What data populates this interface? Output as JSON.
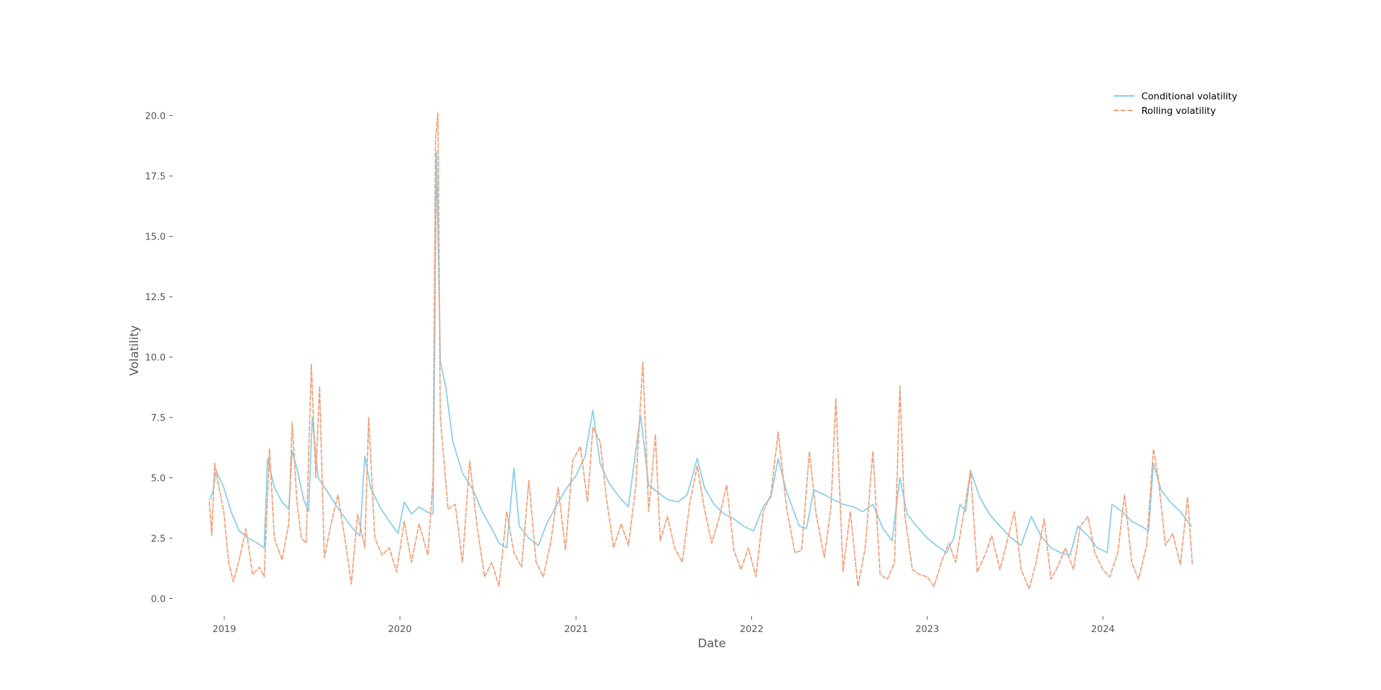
{
  "chart_data": {
    "type": "line",
    "title": "",
    "xlabel": "Date",
    "ylabel": "Volatility",
    "x_ticks": [
      "2019",
      "2020",
      "2021",
      "2022",
      "2023",
      "2024"
    ],
    "y_ticks": [
      "0.0",
      "2.5",
      "5.0",
      "7.5",
      "10.0",
      "12.5",
      "15.0",
      "17.5",
      "20.0"
    ],
    "xlim": [
      "2018-09-30",
      "2024-10-18"
    ],
    "ylim": [
      -0.5,
      20.5
    ],
    "grid": false,
    "legend_position": "top-right",
    "series": [
      {
        "name": "Conditional volatility",
        "color": "#87ceeb",
        "style": "solid",
        "points": [
          [
            "2018-12-01",
            4.1
          ],
          [
            "2018-12-08",
            4.4
          ],
          [
            "2018-12-15",
            5.3
          ],
          [
            "2018-12-22",
            5.0
          ],
          [
            "2018-12-31",
            4.6
          ],
          [
            "2019-01-15",
            3.6
          ],
          [
            "2019-02-01",
            2.8
          ],
          [
            "2019-02-20",
            2.5
          ],
          [
            "2019-03-10",
            2.3
          ],
          [
            "2019-03-25",
            2.1
          ],
          [
            "2019-04-01",
            5.8
          ],
          [
            "2019-04-15",
            4.6
          ],
          [
            "2019-05-01",
            4.0
          ],
          [
            "2019-05-15",
            3.7
          ],
          [
            "2019-05-22",
            6.1
          ],
          [
            "2019-06-01",
            5.4
          ],
          [
            "2019-06-15",
            4.1
          ],
          [
            "2019-06-25",
            3.6
          ],
          [
            "2019-07-03",
            7.5
          ],
          [
            "2019-07-15",
            5.0
          ],
          [
            "2019-08-01",
            4.5
          ],
          [
            "2019-08-20",
            3.9
          ],
          [
            "2019-09-10",
            3.3
          ],
          [
            "2019-09-25",
            2.9
          ],
          [
            "2019-10-10",
            2.6
          ],
          [
            "2019-10-20",
            5.9
          ],
          [
            "2019-11-01",
            4.6
          ],
          [
            "2019-11-20",
            3.8
          ],
          [
            "2019-12-10",
            3.2
          ],
          [
            "2019-12-28",
            2.7
          ],
          [
            "2020-01-10",
            4.0
          ],
          [
            "2020-01-25",
            3.5
          ],
          [
            "2020-02-10",
            3.8
          ],
          [
            "2020-02-25",
            3.6
          ],
          [
            "2020-03-10",
            3.5
          ],
          [
            "2020-03-17",
            18.5
          ],
          [
            "2020-03-25",
            9.8
          ],
          [
            "2020-04-05",
            8.8
          ],
          [
            "2020-04-20",
            6.5
          ],
          [
            "2020-05-10",
            5.2
          ],
          [
            "2020-06-01",
            4.5
          ],
          [
            "2020-06-20",
            3.6
          ],
          [
            "2020-07-10",
            2.9
          ],
          [
            "2020-07-25",
            2.3
          ],
          [
            "2020-08-10",
            2.1
          ],
          [
            "2020-08-25",
            5.4
          ],
          [
            "2020-09-05",
            3.0
          ],
          [
            "2020-09-25",
            2.5
          ],
          [
            "2020-10-15",
            2.2
          ],
          [
            "2020-11-01",
            3.1
          ],
          [
            "2020-11-20",
            3.8
          ],
          [
            "2020-12-10",
            4.5
          ],
          [
            "2021-01-01",
            5.1
          ],
          [
            "2021-01-20",
            5.9
          ],
          [
            "2021-02-05",
            7.8
          ],
          [
            "2021-02-20",
            5.6
          ],
          [
            "2021-03-10",
            4.8
          ],
          [
            "2021-04-01",
            4.2
          ],
          [
            "2021-04-20",
            3.8
          ],
          [
            "2021-05-15",
            7.6
          ],
          [
            "2021-06-01",
            4.7
          ],
          [
            "2021-06-20",
            4.4
          ],
          [
            "2021-07-10",
            4.1
          ],
          [
            "2021-08-01",
            4.0
          ],
          [
            "2021-08-20",
            4.3
          ],
          [
            "2021-09-10",
            5.8
          ],
          [
            "2021-09-25",
            4.6
          ],
          [
            "2021-10-15",
            3.9
          ],
          [
            "2021-11-05",
            3.5
          ],
          [
            "2021-11-25",
            3.3
          ],
          [
            "2021-12-15",
            3.0
          ],
          [
            "2022-01-05",
            2.8
          ],
          [
            "2022-01-25",
            3.8
          ],
          [
            "2022-02-10",
            4.2
          ],
          [
            "2022-02-25",
            5.8
          ],
          [
            "2022-03-15",
            4.4
          ],
          [
            "2022-04-10",
            3.0
          ],
          [
            "2022-04-25",
            2.9
          ],
          [
            "2022-05-10",
            4.5
          ],
          [
            "2022-06-01",
            4.3
          ],
          [
            "2022-06-20",
            4.1
          ],
          [
            "2022-07-10",
            3.9
          ],
          [
            "2022-08-01",
            3.8
          ],
          [
            "2022-08-20",
            3.6
          ],
          [
            "2022-09-10",
            3.9
          ],
          [
            "2022-10-01",
            2.9
          ],
          [
            "2022-10-20",
            2.4
          ],
          [
            "2022-11-05",
            5.0
          ],
          [
            "2022-11-20",
            3.5
          ],
          [
            "2022-12-10",
            3.0
          ],
          [
            "2023-01-01",
            2.5
          ],
          [
            "2023-01-20",
            2.2
          ],
          [
            "2023-02-10",
            1.9
          ],
          [
            "2023-02-25",
            2.5
          ],
          [
            "2023-03-10",
            3.9
          ],
          [
            "2023-03-22",
            3.6
          ],
          [
            "2023-04-01",
            5.3
          ],
          [
            "2023-04-20",
            4.2
          ],
          [
            "2023-05-10",
            3.5
          ],
          [
            "2023-06-01",
            3.0
          ],
          [
            "2023-06-25",
            2.5
          ],
          [
            "2023-07-15",
            2.2
          ],
          [
            "2023-08-05",
            3.4
          ],
          [
            "2023-08-25",
            2.6
          ],
          [
            "2023-09-15",
            2.1
          ],
          [
            "2023-10-05",
            1.9
          ],
          [
            "2023-10-25",
            1.8
          ],
          [
            "2023-11-10",
            3.0
          ],
          [
            "2023-12-01",
            2.6
          ],
          [
            "2023-12-20",
            2.1
          ],
          [
            "2024-01-10",
            1.9
          ],
          [
            "2024-01-20",
            3.9
          ],
          [
            "2024-02-10",
            3.6
          ],
          [
            "2024-03-01",
            3.2
          ],
          [
            "2024-03-20",
            3.0
          ],
          [
            "2024-04-05",
            2.8
          ],
          [
            "2024-04-15",
            5.6
          ],
          [
            "2024-05-01",
            4.5
          ],
          [
            "2024-05-20",
            4.0
          ],
          [
            "2024-06-10",
            3.6
          ],
          [
            "2024-06-25",
            3.2
          ],
          [
            "2024-07-03",
            3.0
          ]
        ]
      },
      {
        "name": "Rolling volatility",
        "color": "#f4a07a",
        "style": "dashed",
        "points": [
          [
            "2018-12-01",
            4.0
          ],
          [
            "2018-12-06",
            2.6
          ],
          [
            "2018-12-12",
            5.6
          ],
          [
            "2018-12-20",
            4.7
          ],
          [
            "2018-12-31",
            3.6
          ],
          [
            "2019-01-10",
            1.5
          ],
          [
            "2019-01-20",
            0.7
          ],
          [
            "2019-02-01",
            1.6
          ],
          [
            "2019-02-15",
            2.9
          ],
          [
            "2019-03-01",
            1.0
          ],
          [
            "2019-03-15",
            1.3
          ],
          [
            "2019-03-25",
            0.9
          ],
          [
            "2019-04-05",
            6.2
          ],
          [
            "2019-04-15",
            2.5
          ],
          [
            "2019-05-01",
            1.6
          ],
          [
            "2019-05-15",
            3.1
          ],
          [
            "2019-05-22",
            7.3
          ],
          [
            "2019-06-01",
            4.0
          ],
          [
            "2019-06-10",
            2.5
          ],
          [
            "2019-06-20",
            2.3
          ],
          [
            "2019-07-01",
            9.7
          ],
          [
            "2019-07-10",
            5.0
          ],
          [
            "2019-07-18",
            8.8
          ],
          [
            "2019-07-28",
            1.7
          ],
          [
            "2019-08-10",
            3.0
          ],
          [
            "2019-08-25",
            4.3
          ],
          [
            "2019-09-10",
            2.3
          ],
          [
            "2019-09-22",
            0.6
          ],
          [
            "2019-10-05",
            3.5
          ],
          [
            "2019-10-20",
            2.1
          ],
          [
            "2019-10-28",
            7.5
          ],
          [
            "2019-11-10",
            2.5
          ],
          [
            "2019-11-25",
            1.8
          ],
          [
            "2019-12-10",
            2.1
          ],
          [
            "2019-12-25",
            1.1
          ],
          [
            "2020-01-10",
            3.2
          ],
          [
            "2020-01-25",
            1.5
          ],
          [
            "2020-02-10",
            3.1
          ],
          [
            "2020-02-28",
            1.8
          ],
          [
            "2020-03-10",
            5.0
          ],
          [
            "2020-03-15",
            19.0
          ],
          [
            "2020-03-20",
            20.1
          ],
          [
            "2020-03-25",
            7.5
          ],
          [
            "2020-04-10",
            3.7
          ],
          [
            "2020-04-25",
            3.9
          ],
          [
            "2020-05-10",
            1.5
          ],
          [
            "2020-05-25",
            5.7
          ],
          [
            "2020-06-10",
            2.9
          ],
          [
            "2020-06-25",
            0.9
          ],
          [
            "2020-07-10",
            1.5
          ],
          [
            "2020-07-25",
            0.5
          ],
          [
            "2020-08-10",
            3.6
          ],
          [
            "2020-08-25",
            1.9
          ],
          [
            "2020-09-10",
            1.3
          ],
          [
            "2020-09-25",
            4.9
          ],
          [
            "2020-10-10",
            1.5
          ],
          [
            "2020-10-25",
            0.9
          ],
          [
            "2020-11-10",
            2.4
          ],
          [
            "2020-11-25",
            4.6
          ],
          [
            "2020-12-10",
            2.0
          ],
          [
            "2020-12-25",
            5.7
          ],
          [
            "2021-01-10",
            6.3
          ],
          [
            "2021-01-25",
            4.0
          ],
          [
            "2021-02-05",
            7.1
          ],
          [
            "2021-02-20",
            6.5
          ],
          [
            "2021-03-05",
            4.2
          ],
          [
            "2021-03-20",
            2.1
          ],
          [
            "2021-04-05",
            3.1
          ],
          [
            "2021-04-20",
            2.2
          ],
          [
            "2021-05-05",
            4.6
          ],
          [
            "2021-05-20",
            9.8
          ],
          [
            "2021-06-01",
            3.6
          ],
          [
            "2021-06-15",
            6.8
          ],
          [
            "2021-06-25",
            2.4
          ],
          [
            "2021-07-10",
            3.4
          ],
          [
            "2021-07-25",
            2.1
          ],
          [
            "2021-08-10",
            1.5
          ],
          [
            "2021-08-25",
            3.9
          ],
          [
            "2021-09-10",
            5.5
          ],
          [
            "2021-09-25",
            3.7
          ],
          [
            "2021-10-10",
            2.3
          ],
          [
            "2021-10-25",
            3.3
          ],
          [
            "2021-11-10",
            4.7
          ],
          [
            "2021-11-25",
            2.0
          ],
          [
            "2021-12-10",
            1.2
          ],
          [
            "2021-12-25",
            2.1
          ],
          [
            "2022-01-10",
            0.9
          ],
          [
            "2022-01-25",
            3.6
          ],
          [
            "2022-02-10",
            4.3
          ],
          [
            "2022-02-25",
            6.9
          ],
          [
            "2022-03-15",
            3.7
          ],
          [
            "2022-04-01",
            1.9
          ],
          [
            "2022-04-15",
            2.0
          ],
          [
            "2022-05-01",
            6.1
          ],
          [
            "2022-05-15",
            3.5
          ],
          [
            "2022-06-01",
            1.7
          ],
          [
            "2022-06-15",
            3.8
          ],
          [
            "2022-06-25",
            8.3
          ],
          [
            "2022-07-10",
            1.1
          ],
          [
            "2022-07-25",
            3.6
          ],
          [
            "2022-08-10",
            0.5
          ],
          [
            "2022-08-25",
            2.1
          ],
          [
            "2022-09-10",
            6.1
          ],
          [
            "2022-09-25",
            1.0
          ],
          [
            "2022-10-10",
            0.8
          ],
          [
            "2022-10-25",
            1.5
          ],
          [
            "2022-11-05",
            8.8
          ],
          [
            "2022-11-15",
            3.5
          ],
          [
            "2022-12-01",
            1.2
          ],
          [
            "2022-12-15",
            1.0
          ],
          [
            "2023-01-01",
            0.9
          ],
          [
            "2023-01-15",
            0.5
          ],
          [
            "2023-02-01",
            1.6
          ],
          [
            "2023-02-15",
            2.3
          ],
          [
            "2023-03-01",
            1.5
          ],
          [
            "2023-03-15",
            3.2
          ],
          [
            "2023-04-01",
            5.3
          ],
          [
            "2023-04-15",
            1.1
          ],
          [
            "2023-05-01",
            1.8
          ],
          [
            "2023-05-15",
            2.6
          ],
          [
            "2023-06-01",
            1.2
          ],
          [
            "2023-06-15",
            2.3
          ],
          [
            "2023-07-01",
            3.6
          ],
          [
            "2023-07-15",
            1.2
          ],
          [
            "2023-08-01",
            0.4
          ],
          [
            "2023-08-15",
            1.5
          ],
          [
            "2023-09-01",
            3.3
          ],
          [
            "2023-09-15",
            0.8
          ],
          [
            "2023-10-01",
            1.4
          ],
          [
            "2023-10-15",
            2.1
          ],
          [
            "2023-11-01",
            1.2
          ],
          [
            "2023-11-15",
            3.0
          ],
          [
            "2023-12-01",
            3.4
          ],
          [
            "2023-12-15",
            1.9
          ],
          [
            "2024-01-01",
            1.2
          ],
          [
            "2024-01-15",
            0.9
          ],
          [
            "2024-02-01",
            1.9
          ],
          [
            "2024-02-15",
            4.3
          ],
          [
            "2024-03-01",
            1.5
          ],
          [
            "2024-03-15",
            0.8
          ],
          [
            "2024-04-01",
            2.2
          ],
          [
            "2024-04-15",
            6.2
          ],
          [
            "2024-04-25",
            5.0
          ],
          [
            "2024-05-10",
            2.2
          ],
          [
            "2024-05-25",
            2.7
          ],
          [
            "2024-06-10",
            1.4
          ],
          [
            "2024-06-25",
            4.2
          ],
          [
            "2024-07-05",
            1.4
          ]
        ]
      }
    ]
  }
}
